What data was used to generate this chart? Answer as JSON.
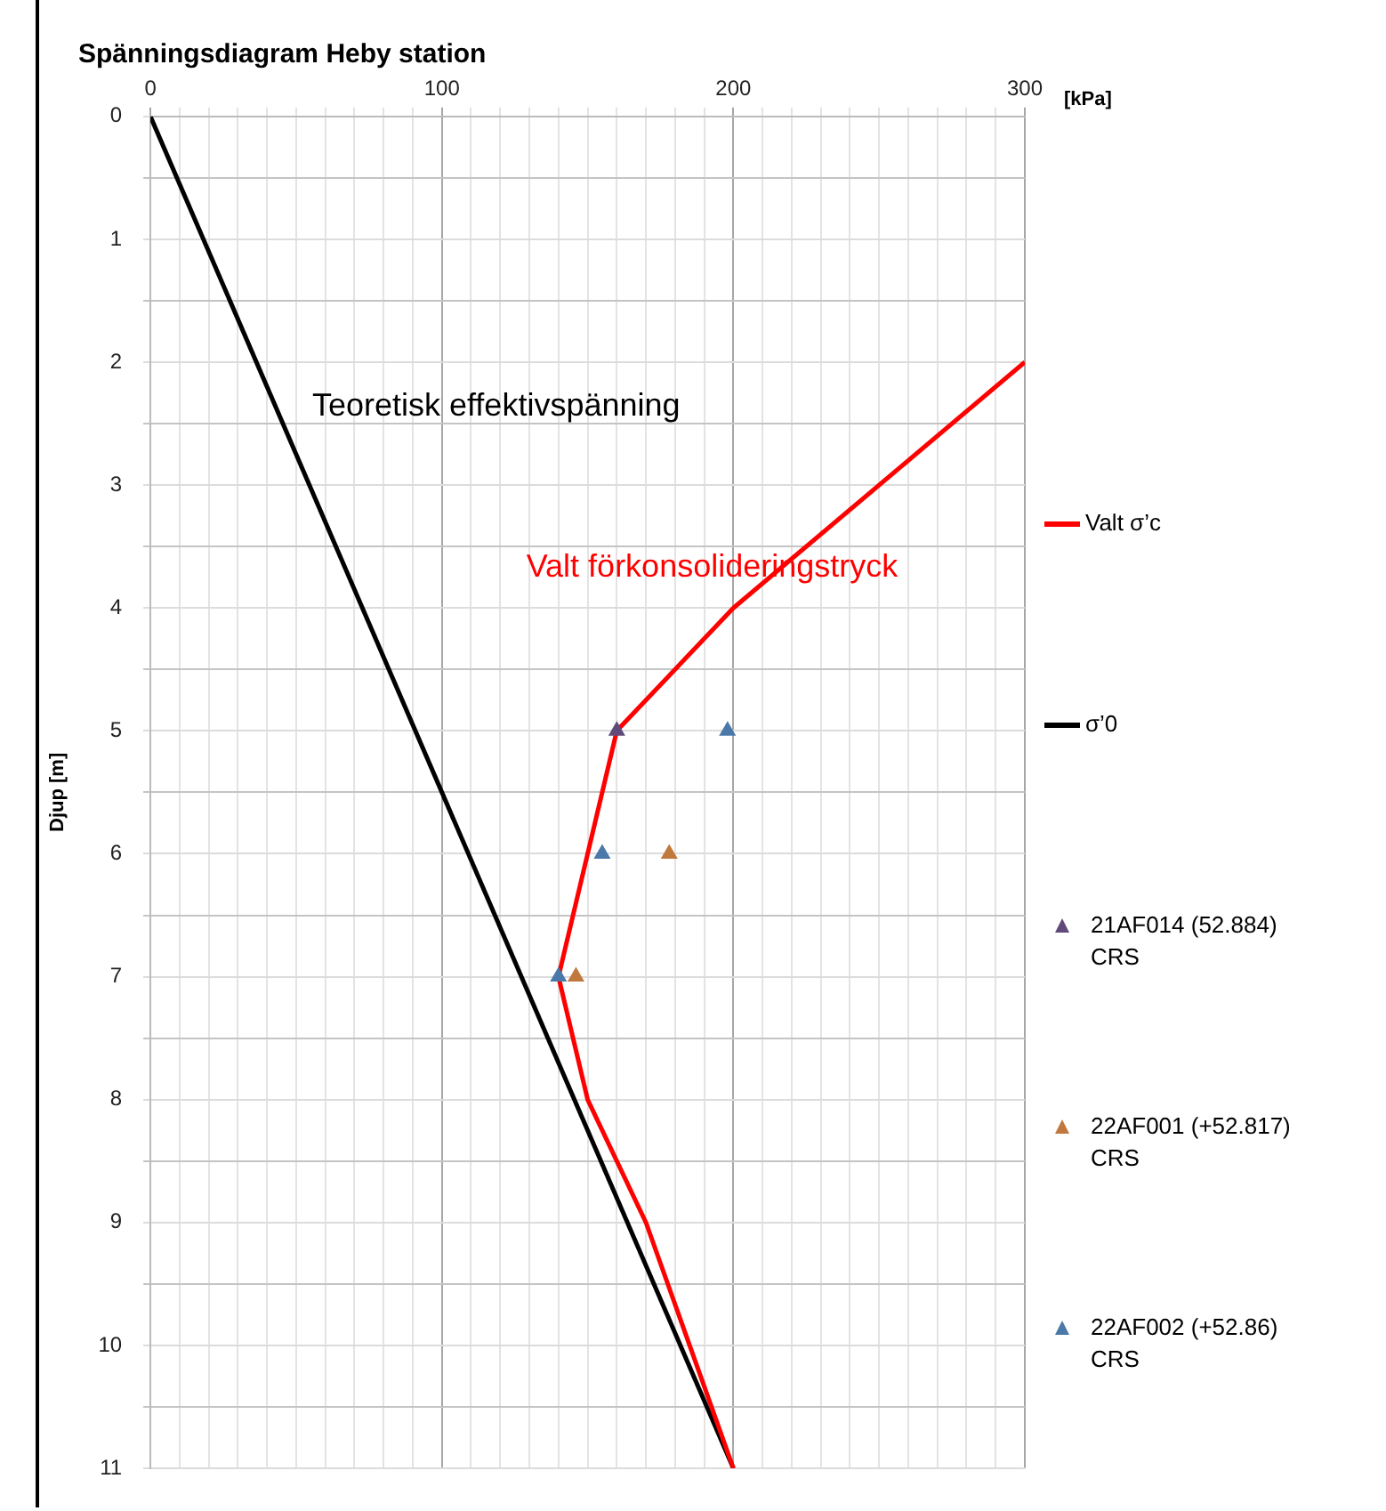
{
  "chart_data": {
    "type": "line",
    "title": "Spänningsdiagram Heby station",
    "xlabel": "[kPa]",
    "ylabel": "Djup [m]",
    "xlim": [
      0,
      300
    ],
    "ylim": [
      11,
      0
    ],
    "xticks": [
      0,
      {
        "value": 10,
        "label": null
      },
      {
        "value": 20,
        "label": null
      },
      {
        "value": 30,
        "label": null
      },
      {
        "value": 40,
        "label": null
      },
      {
        "value": 50,
        "label": null
      },
      {
        "value": 60,
        "label": null
      },
      {
        "value": 70,
        "label": null
      },
      {
        "value": 80,
        "label": null
      },
      {
        "value": 90,
        "label": null
      },
      100,
      {
        "value": 110,
        "label": null
      },
      {
        "value": 120,
        "label": null
      },
      {
        "value": 130,
        "label": null
      },
      {
        "value": 140,
        "label": null
      },
      {
        "value": 150,
        "label": null
      },
      {
        "value": 160,
        "label": null
      },
      {
        "value": 170,
        "label": null
      },
      {
        "value": 180,
        "label": null
      },
      {
        "value": 190,
        "label": null
      },
      200,
      {
        "value": 210,
        "label": null
      },
      {
        "value": 220,
        "label": null
      },
      {
        "value": 230,
        "label": null
      },
      {
        "value": 240,
        "label": null
      },
      {
        "value": 250,
        "label": null
      },
      {
        "value": 260,
        "label": null
      },
      {
        "value": 270,
        "label": null
      },
      {
        "value": 280,
        "label": null
      },
      {
        "value": 290,
        "label": null
      },
      300
    ],
    "yticks": [
      0,
      {
        "value": 0.5,
        "label": null
      },
      1,
      {
        "value": 1.5,
        "label": null
      },
      2,
      {
        "value": 2.5,
        "label": null
      },
      3,
      {
        "value": 3.5,
        "label": null
      },
      4,
      {
        "value": 4.5,
        "label": null
      },
      5,
      {
        "value": 5.5,
        "label": null
      },
      6,
      {
        "value": 6.5,
        "label": null
      },
      7,
      {
        "value": 7.5,
        "label": null
      },
      8,
      {
        "value": 8.5,
        "label": null
      },
      9,
      {
        "value": 9.5,
        "label": null
      },
      10,
      {
        "value": 10.5,
        "label": null
      },
      11
    ],
    "grid": true,
    "legend": "right",
    "line_style": "solid",
    "series": [
      {
        "name": "Valt σ’c",
        "type": "line",
        "marker": "none",
        "color": "#ff0000",
        "x": [
          300,
          200,
          160,
          140,
          150,
          170,
          200
        ],
        "values": [
          2,
          4,
          5,
          7,
          8,
          9,
          11
        ]
      },
      {
        "name": "σ’0",
        "type": "line",
        "marker": "none",
        "color": "#000000",
        "x": [
          0,
          200
        ],
        "values": [
          0,
          11
        ]
      },
      {
        "name": "21AF014 (52.884) CRS",
        "type": "scatter",
        "marker": "triangle",
        "color": "#604a7b",
        "x": [
          160
        ],
        "values": [
          5
        ]
      },
      {
        "name": "22AF001 (+52.817) CRS",
        "type": "scatter",
        "marker": "triangle",
        "color": "#c0783c",
        "x": [
          178,
          146
        ],
        "values": [
          6,
          7
        ]
      },
      {
        "name": "22AF002 (+52.86) CRS",
        "type": "scatter",
        "marker": "triangle",
        "color": "#4a78a8",
        "x": [
          198,
          155,
          140
        ],
        "values": [
          5,
          6,
          7
        ]
      }
    ],
    "annotations": [
      "Valt förkonsolideringstryck",
      "Teoretisk effektivspänning"
    ]
  }
}
